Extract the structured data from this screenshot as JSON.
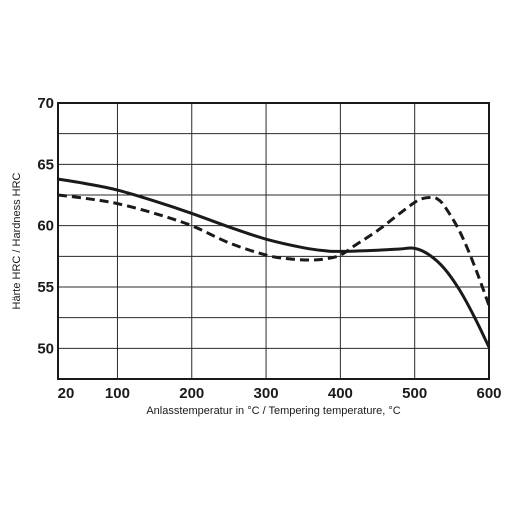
{
  "chart_data": {
    "type": "line",
    "xlabel": "Anlasstemperatur in °C / Tempering temperature, °C",
    "ylabel": "Härte HRC / Hardness HRC",
    "xlim": [
      20,
      600
    ],
    "ylim": [
      47.5,
      70
    ],
    "x_ticks": [
      "20",
      "100",
      "200",
      "300",
      "400",
      "500",
      "600"
    ],
    "y_ticks": [
      "50",
      "55",
      "60",
      "65",
      "70"
    ],
    "grid": true,
    "series": [
      {
        "style": "solid",
        "color": "#1a1a1a",
        "x": [
          20,
          60,
          100,
          150,
          200,
          250,
          300,
          350,
          380,
          400,
          450,
          480,
          500,
          520,
          540,
          560,
          580,
          600
        ],
        "y": [
          63.8,
          63.4,
          62.9,
          62.0,
          61.0,
          59.9,
          58.9,
          58.2,
          57.95,
          57.9,
          58.0,
          58.1,
          58.15,
          57.6,
          56.5,
          54.8,
          52.6,
          50.1
        ]
      },
      {
        "style": "dashed",
        "color": "#1a1a1a",
        "x": [
          20,
          60,
          100,
          150,
          200,
          250,
          300,
          330,
          360,
          380,
          400,
          420,
          450,
          480,
          500,
          510,
          520,
          530,
          540,
          560,
          580,
          600
        ],
        "y": [
          62.5,
          62.2,
          61.8,
          61.0,
          60.0,
          58.6,
          57.6,
          57.3,
          57.2,
          57.3,
          57.6,
          58.4,
          59.6,
          61.0,
          61.9,
          62.2,
          62.3,
          62.2,
          61.6,
          59.6,
          56.8,
          53.5
        ]
      }
    ]
  }
}
